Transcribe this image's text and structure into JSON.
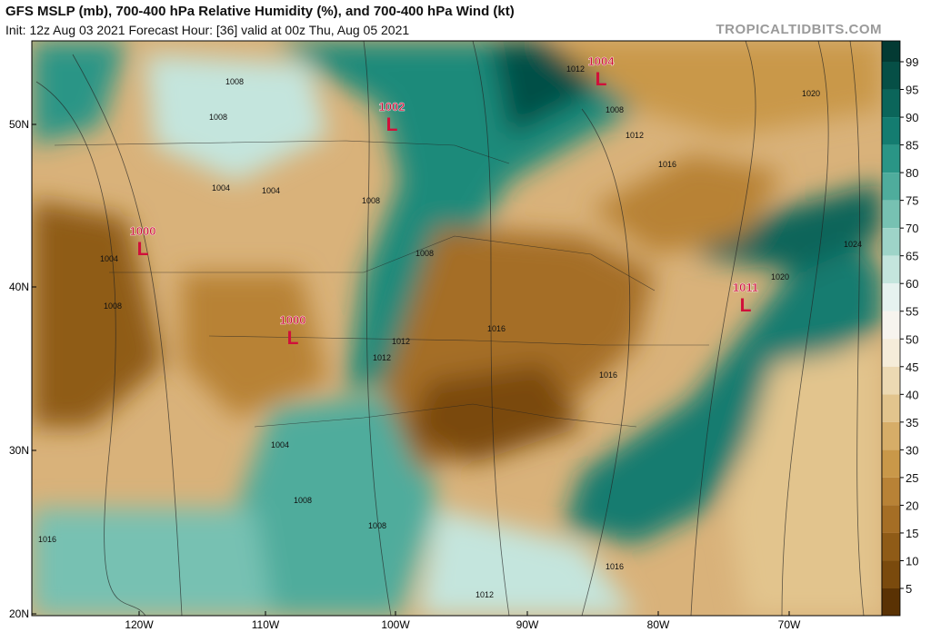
{
  "header": {
    "title": "GFS MSLP (mb), 700-400 hPa Relative Humidity (%), and 700-400 hPa Wind (kt)",
    "subtitle": "Init: 12z Aug 03 2021   Forecast Hour: [36]   valid at 00z Thu, Aug 05 2021",
    "site": "TROPICALTIDBITS.COM"
  },
  "map": {
    "lat_labels": [
      "50N",
      "40N",
      "30N",
      "20N"
    ],
    "lon_labels": [
      "120W",
      "110W",
      "100W",
      "90W",
      "80W",
      "70W"
    ],
    "lows": [
      {
        "pressure": "1004",
        "symbol": "L"
      },
      {
        "pressure": "1002",
        "symbol": "L"
      },
      {
        "pressure": "1000",
        "symbol": "L"
      },
      {
        "pressure": "1000",
        "symbol": "L"
      },
      {
        "pressure": "1011",
        "symbol": "L"
      }
    ],
    "isobar_labels": [
      "1008",
      "1008",
      "1012",
      "1016",
      "1020",
      "1024",
      "1004",
      "1004",
      "1008",
      "1008",
      "1008",
      "1004",
      "1012",
      "1012",
      "1016",
      "1016",
      "1004",
      "1008",
      "1008",
      "1016",
      "1016",
      "1012",
      "1012",
      "1020",
      "1008"
    ]
  },
  "colorbar": {
    "labels": [
      99,
      95,
      90,
      85,
      80,
      75,
      70,
      65,
      60,
      55,
      50,
      45,
      40,
      35,
      30,
      25,
      20,
      15,
      10,
      5
    ],
    "colors": [
      "#033a33",
      "#064f46",
      "#0b655a",
      "#147c70",
      "#2a9586",
      "#4fac9c",
      "#77c1b2",
      "#9ed4c8",
      "#c4e5dd",
      "#e6f2ef",
      "#f7f4ee",
      "#f5ecd9",
      "#ecd9b3",
      "#e2c48d",
      "#d6ad68",
      "#c99849",
      "#b88236",
      "#a56e25",
      "#8f5b17",
      "#7a4a0d",
      "#5a3204"
    ]
  }
}
